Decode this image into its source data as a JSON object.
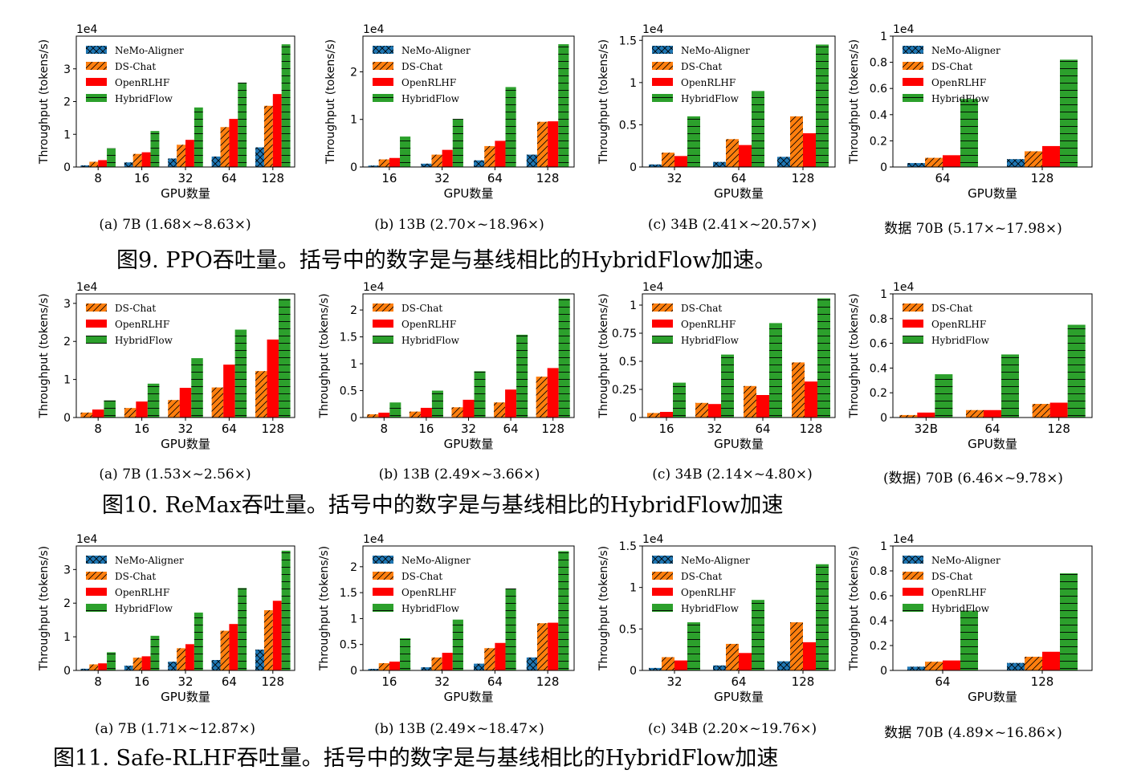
{
  "colors": {
    "NeMo-Aligner": "#1f77b4",
    "DS-Chat": "#ff7f0e",
    "OpenRLHF": "#ff0000",
    "HybridFlow": "#2ca02c"
  },
  "figures": [
    {
      "caption": "图9. PPO吞吐量。括号中的数字是与基线相比的HybridFlow加速。",
      "subplots": [
        {
          "caption": "(a) 7B (1.68×~8.63×)"
        },
        {
          "caption": "(b) 13B (2.70×~18.96×)"
        },
        {
          "caption": "(c) 34B (2.41×~20.57×)"
        },
        {
          "caption": "数据 70B (5.17×~17.98×)"
        }
      ]
    },
    {
      "caption": "图10. ReMax吞吐量。括号中的数字是与基线相比的HybridFlow加速",
      "subplots": [
        {
          "caption": "(a) 7B (1.53×~2.56×)"
        },
        {
          "caption": "(b) 13B (2.49×~3.66×)"
        },
        {
          "caption": "(c) 34B (2.14×~4.80×)"
        },
        {
          "caption": "(数据) 70B (6.46×~9.78×)"
        }
      ]
    },
    {
      "caption": "图11. Safe-RLHF吞吐量。括号中的数字是与基线相比的HybridFlow加速",
      "subplots": [
        {
          "caption": "(a) 7B (1.71×~12.87×)"
        },
        {
          "caption": "(b) 13B (2.49×~18.47×)"
        },
        {
          "caption": "(c) 34B (2.20×~19.76×)"
        },
        {
          "caption": "数据 70B (4.89×~16.86×)"
        }
      ]
    }
  ],
  "chart_data": [
    {
      "type": "bar",
      "figure": 0,
      "xlabel": "GPU数量",
      "ylabel": "Throughput (tokens/s)",
      "scale_label": "1e4",
      "ylim": [
        0,
        4.0
      ],
      "yticks": [
        0,
        1,
        2,
        3
      ],
      "legend": "top-left",
      "categories": [
        "8",
        "16",
        "32",
        "64",
        "128"
      ],
      "series": [
        {
          "name": "NeMo-Aligner",
          "values": [
            0.05,
            0.14,
            0.26,
            0.32,
            0.6
          ]
        },
        {
          "name": "DS-Chat",
          "values": [
            0.16,
            0.4,
            0.68,
            1.22,
            1.87
          ]
        },
        {
          "name": "OpenRLHF",
          "values": [
            0.21,
            0.45,
            0.83,
            1.47,
            2.23
          ]
        },
        {
          "name": "HybridFlow",
          "values": [
            0.57,
            1.1,
            1.82,
            2.58,
            3.75
          ]
        }
      ]
    },
    {
      "type": "bar",
      "figure": 0,
      "xlabel": "GPU数量",
      "ylabel": "Throughput (tokens/s)",
      "scale_label": "1e4",
      "ylim": [
        0,
        2.75
      ],
      "yticks": [
        0,
        1,
        2
      ],
      "legend": "top-left",
      "categories": [
        "16",
        "32",
        "64",
        "128"
      ],
      "series": [
        {
          "name": "NeMo-Aligner",
          "values": [
            0.03,
            0.07,
            0.14,
            0.26
          ]
        },
        {
          "name": "DS-Chat",
          "values": [
            0.16,
            0.26,
            0.44,
            0.95
          ]
        },
        {
          "name": "OpenRLHF",
          "values": [
            0.19,
            0.36,
            0.55,
            0.96
          ]
        },
        {
          "name": "HybridFlow",
          "values": [
            0.64,
            1.01,
            1.68,
            2.58
          ]
        }
      ]
    },
    {
      "type": "bar",
      "figure": 0,
      "xlabel": "GPU数量",
      "ylabel": "Throughput (tokens/s)",
      "scale_label": "1e4",
      "ylim": [
        0,
        1.55
      ],
      "yticks": [
        0.0,
        0.5,
        1.0,
        1.5
      ],
      "legend": "top-left",
      "categories": [
        "32",
        "64",
        "128"
      ],
      "series": [
        {
          "name": "NeMo-Aligner",
          "values": [
            0.03,
            0.06,
            0.12
          ]
        },
        {
          "name": "DS-Chat",
          "values": [
            0.17,
            0.33,
            0.6
          ]
        },
        {
          "name": "OpenRLHF",
          "values": [
            0.13,
            0.26,
            0.4
          ]
        },
        {
          "name": "HybridFlow",
          "values": [
            0.6,
            0.9,
            1.45
          ]
        }
      ]
    },
    {
      "type": "bar",
      "figure": 0,
      "xlabel": "GPU数量",
      "ylabel": "Throughput (tokens/s)",
      "scale_label": "1e4",
      "ylim": [
        0,
        1.0
      ],
      "yticks": [
        0.0,
        0.2,
        0.4,
        0.6,
        0.8,
        1.0
      ],
      "legend": "top-left",
      "categories": [
        "64",
        "128"
      ],
      "series": [
        {
          "name": "NeMo-Aligner",
          "values": [
            0.03,
            0.06
          ]
        },
        {
          "name": "DS-Chat",
          "values": [
            0.07,
            0.12
          ]
        },
        {
          "name": "OpenRLHF",
          "values": [
            0.09,
            0.16
          ]
        },
        {
          "name": "HybridFlow",
          "values": [
            0.52,
            0.82
          ]
        }
      ]
    },
    {
      "type": "bar",
      "figure": 1,
      "xlabel": "GPU数量",
      "ylabel": "Throughput (tokens/s)",
      "scale_label": "1e4",
      "ylim": [
        0,
        3.25
      ],
      "yticks": [
        0,
        1,
        2,
        3
      ],
      "legend": "top-left",
      "categories": [
        "8",
        "16",
        "32",
        "64",
        "128"
      ],
      "series": [
        {
          "name": "DS-Chat",
          "values": [
            0.13,
            0.25,
            0.46,
            0.79,
            1.22
          ]
        },
        {
          "name": "OpenRLHF",
          "values": [
            0.21,
            0.42,
            0.78,
            1.39,
            2.05
          ]
        },
        {
          "name": "HybridFlow",
          "values": [
            0.45,
            0.89,
            1.56,
            2.31,
            3.12
          ]
        }
      ]
    },
    {
      "type": "bar",
      "figure": 1,
      "xlabel": "GPU数量",
      "ylabel": "Throughput (tokens/s)",
      "scale_label": "1e4",
      "ylim": [
        0,
        2.3
      ],
      "yticks": [
        0.0,
        0.5,
        1.0,
        1.5,
        2.0
      ],
      "legend": "top-left",
      "categories": [
        "8",
        "16",
        "32",
        "64",
        "128"
      ],
      "series": [
        {
          "name": "DS-Chat",
          "values": [
            0.06,
            0.11,
            0.19,
            0.28,
            0.76
          ]
        },
        {
          "name": "OpenRLHF",
          "values": [
            0.09,
            0.18,
            0.33,
            0.52,
            0.92
          ]
        },
        {
          "name": "HybridFlow",
          "values": [
            0.28,
            0.5,
            0.86,
            1.54,
            2.21
          ]
        }
      ]
    },
    {
      "type": "bar",
      "figure": 1,
      "xlabel": "GPU数量",
      "ylabel": "Throughput (tokens/s)",
      "scale_label": "1e4",
      "ylim": [
        0,
        1.1
      ],
      "yticks": [
        0.0,
        0.25,
        0.5,
        0.75,
        1.0
      ],
      "legend": "top-left",
      "categories": [
        "16",
        "32",
        "64",
        "128"
      ],
      "series": [
        {
          "name": "DS-Chat",
          "values": [
            0.04,
            0.13,
            0.28,
            0.49
          ]
        },
        {
          "name": "OpenRLHF",
          "values": [
            0.05,
            0.12,
            0.2,
            0.32
          ]
        },
        {
          "name": "HybridFlow",
          "values": [
            0.31,
            0.56,
            0.84,
            1.06
          ]
        }
      ]
    },
    {
      "type": "bar",
      "figure": 1,
      "xlabel": "GPU数量",
      "ylabel": "Throughput (tokens/s)",
      "scale_label": "1e4",
      "ylim": [
        0,
        1.0
      ],
      "yticks": [
        0.0,
        0.2,
        0.4,
        0.6,
        0.8,
        1.0
      ],
      "legend": "top-left",
      "categories": [
        "32B",
        "64",
        "128"
      ],
      "series": [
        {
          "name": "DS-Chat",
          "values": [
            0.02,
            0.06,
            0.11
          ]
        },
        {
          "name": "OpenRLHF",
          "values": [
            0.04,
            0.06,
            0.12
          ]
        },
        {
          "name": "HybridFlow",
          "values": [
            0.35,
            0.51,
            0.75
          ]
        }
      ]
    },
    {
      "type": "bar",
      "figure": 2,
      "xlabel": "GPU数量",
      "ylabel": "Throughput (tokens/s)",
      "scale_label": "1e4",
      "ylim": [
        0,
        3.7
      ],
      "yticks": [
        0,
        1,
        2,
        3
      ],
      "legend": "top-left",
      "categories": [
        "8",
        "16",
        "32",
        "64",
        "128"
      ],
      "series": [
        {
          "name": "NeMo-Aligner",
          "values": [
            0.05,
            0.14,
            0.26,
            0.31,
            0.62
          ]
        },
        {
          "name": "DS-Chat",
          "values": [
            0.18,
            0.38,
            0.66,
            1.18,
            1.79
          ]
        },
        {
          "name": "OpenRLHF",
          "values": [
            0.21,
            0.42,
            0.78,
            1.38,
            2.07
          ]
        },
        {
          "name": "HybridFlow",
          "values": [
            0.54,
            1.03,
            1.72,
            2.45,
            3.56
          ]
        }
      ]
    },
    {
      "type": "bar",
      "figure": 2,
      "xlabel": "GPU数量",
      "ylabel": "Throughput (tokens/s)",
      "scale_label": "1e4",
      "ylim": [
        0,
        2.4
      ],
      "yticks": [
        0.0,
        0.5,
        1.0,
        1.5,
        2.0
      ],
      "legend": "top-left",
      "categories": [
        "16",
        "32",
        "64",
        "128"
      ],
      "series": [
        {
          "name": "NeMo-Aligner",
          "values": [
            0.03,
            0.06,
            0.13,
            0.25
          ]
        },
        {
          "name": "DS-Chat",
          "values": [
            0.14,
            0.25,
            0.43,
            0.91
          ]
        },
        {
          "name": "OpenRLHF",
          "values": [
            0.17,
            0.34,
            0.53,
            0.92
          ]
        },
        {
          "name": "HybridFlow",
          "values": [
            0.62,
            0.98,
            1.58,
            2.3
          ]
        }
      ]
    },
    {
      "type": "bar",
      "figure": 2,
      "xlabel": "GPU数量",
      "ylabel": "Throughput (tokens/s)",
      "scale_label": "1e4",
      "ylim": [
        0,
        1.5
      ],
      "yticks": [
        0.0,
        0.5,
        1.0,
        1.5
      ],
      "legend": "top-left",
      "categories": [
        "32",
        "64",
        "128"
      ],
      "series": [
        {
          "name": "NeMo-Aligner",
          "values": [
            0.03,
            0.06,
            0.11
          ]
        },
        {
          "name": "DS-Chat",
          "values": [
            0.16,
            0.32,
            0.58
          ]
        },
        {
          "name": "OpenRLHF",
          "values": [
            0.12,
            0.21,
            0.34
          ]
        },
        {
          "name": "HybridFlow",
          "values": [
            0.58,
            0.85,
            1.28
          ]
        }
      ]
    },
    {
      "type": "bar",
      "figure": 2,
      "xlabel": "GPU数量",
      "ylabel": "Throughput (tokens/s)",
      "scale_label": "1e4",
      "ylim": [
        0,
        1.0
      ],
      "yticks": [
        0.0,
        0.2,
        0.4,
        0.6,
        0.8,
        1.0
      ],
      "legend": "top-left",
      "categories": [
        "64",
        "128"
      ],
      "series": [
        {
          "name": "NeMo-Aligner",
          "values": [
            0.03,
            0.06
          ]
        },
        {
          "name": "DS-Chat",
          "values": [
            0.07,
            0.11
          ]
        },
        {
          "name": "OpenRLHF",
          "values": [
            0.08,
            0.15
          ]
        },
        {
          "name": "HybridFlow",
          "values": [
            0.48,
            0.78
          ]
        }
      ]
    }
  ]
}
